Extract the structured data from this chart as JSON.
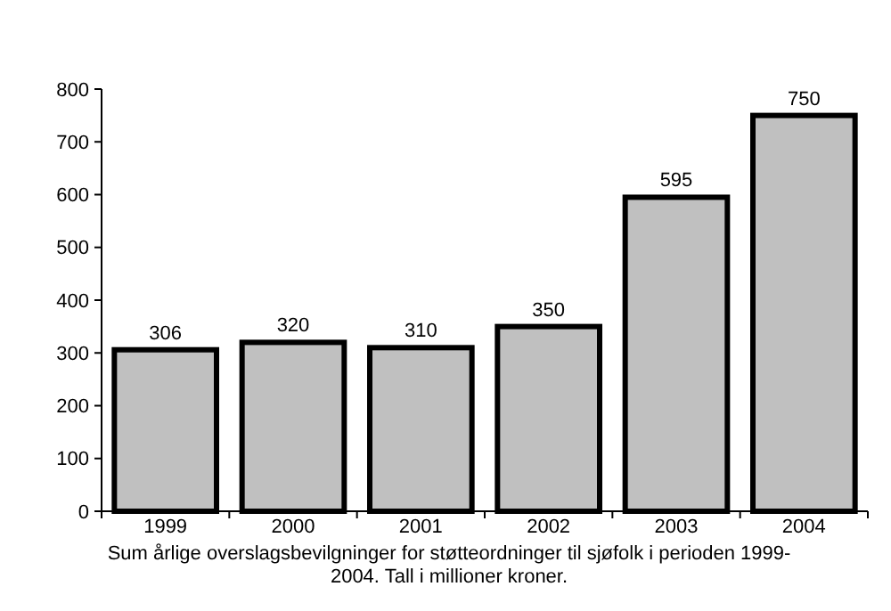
{
  "chart_data": {
    "type": "bar",
    "categories": [
      "1999",
      "2000",
      "2001",
      "2002",
      "2003",
      "2004"
    ],
    "values": [
      306,
      320,
      310,
      350,
      595,
      750
    ],
    "color": "#c0c0c0",
    "data_labels": true,
    "ylim": [
      0,
      800
    ],
    "yticks": [
      0,
      100,
      200,
      300,
      400,
      500,
      600,
      700,
      800
    ],
    "grid": false,
    "annotations": [
      "Sum årlige overslagsbevilgninger for støtteordninger til sjøfolk i perioden 1999-2004. Tall i millioner kroner."
    ]
  }
}
